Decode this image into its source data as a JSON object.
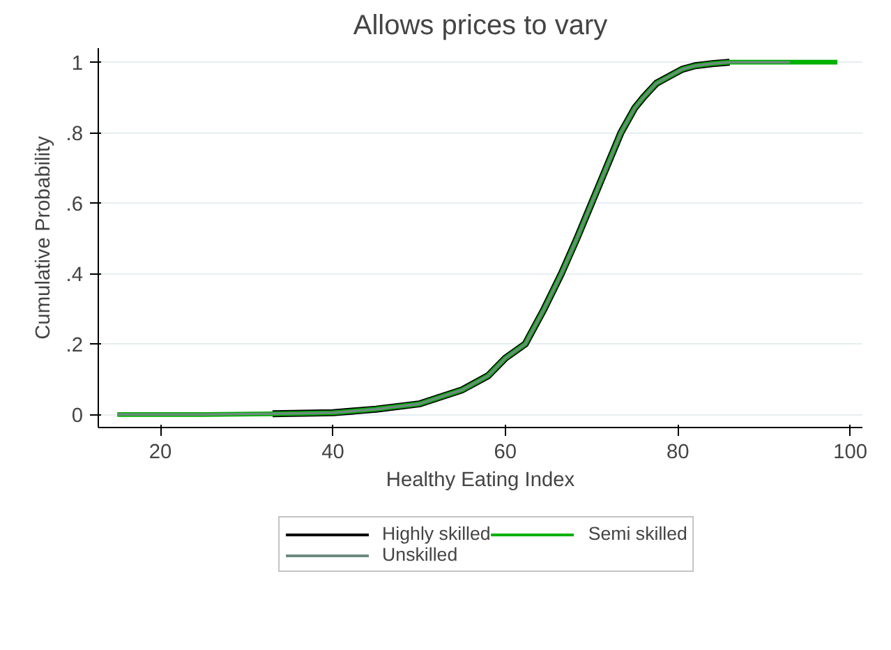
{
  "chart_data": {
    "type": "line",
    "title": "Allows prices to vary",
    "xlabel": "Healthy Eating Index",
    "ylabel": "Cumulative Probability",
    "xlim": [
      12.8,
      101.4
    ],
    "xticks": [
      20,
      40,
      60,
      80,
      100
    ],
    "ylim": [
      -0.037,
      1.04
    ],
    "yticks": [
      0,
      {
        "value": 0.2,
        "label": ".2"
      },
      {
        "value": 0.4,
        "label": ".4"
      },
      {
        "value": 0.6,
        "label": ".6"
      },
      {
        "value": 0.8,
        "label": ".8"
      },
      1
    ],
    "grid": "y",
    "legend": "bottom",
    "line_style": "solid",
    "series": [
      {
        "name": "Highly skilled",
        "color": "#000000",
        "x": [
          33,
          40,
          45,
          50,
          55,
          58,
          60,
          62.3,
          64.5,
          66.5,
          68.3,
          70,
          71.7,
          73.4,
          75,
          76,
          77.5,
          79,
          80.5,
          82,
          84,
          86
        ],
        "values": [
          0.002,
          0.005,
          0.015,
          0.03,
          0.07,
          0.11,
          0.16,
          0.2,
          0.3,
          0.4,
          0.5,
          0.6,
          0.7,
          0.8,
          0.87,
          0.9,
          0.94,
          0.96,
          0.98,
          0.99,
          0.996,
          1
        ]
      },
      {
        "name": "Semi skilled",
        "color": "#00b000",
        "x": [
          15,
          25,
          33,
          40,
          45,
          50,
          55,
          58,
          60,
          62.3,
          64.5,
          66.5,
          68.3,
          70,
          71.7,
          73.4,
          75,
          76,
          77.5,
          79,
          80.5,
          82,
          84,
          86,
          90,
          95,
          98.5
        ],
        "values": [
          0,
          0,
          0.002,
          0.005,
          0.015,
          0.03,
          0.07,
          0.11,
          0.16,
          0.2,
          0.3,
          0.4,
          0.5,
          0.6,
          0.7,
          0.8,
          0.87,
          0.9,
          0.94,
          0.96,
          0.98,
          0.99,
          0.996,
          1,
          1,
          1,
          1
        ]
      },
      {
        "name": "Unskilled",
        "color": "#6e8a80",
        "x": [
          15,
          25,
          33,
          40,
          45,
          50,
          55,
          58,
          60,
          62.3,
          64.5,
          66.5,
          68.3,
          70,
          71.7,
          73.4,
          75,
          76,
          77.5,
          79,
          80.5,
          82,
          84,
          86,
          90,
          93
        ],
        "values": [
          0,
          0,
          0.002,
          0.005,
          0.015,
          0.03,
          0.07,
          0.11,
          0.16,
          0.2,
          0.3,
          0.4,
          0.5,
          0.6,
          0.7,
          0.8,
          0.87,
          0.9,
          0.94,
          0.96,
          0.98,
          0.99,
          0.996,
          1,
          1,
          1
        ]
      }
    ]
  }
}
